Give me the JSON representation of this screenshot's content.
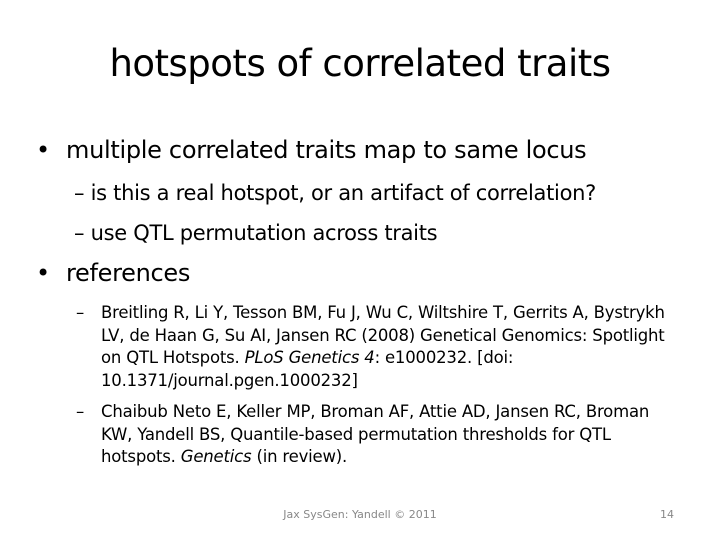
{
  "slide": {
    "title": "hotspots of correlated traits",
    "bullets": [
      {
        "marker": "•",
        "text": "multiple correlated traits map to same locus",
        "subs": [
          {
            "marker": "–",
            "text": "is this a real hotspot, or an artifact of correlation?"
          },
          {
            "marker": "–",
            "text": "use QTL permutation across traits"
          }
        ]
      },
      {
        "marker": "•",
        "text": "references"
      }
    ],
    "references": [
      {
        "marker": "–",
        "authors": "Breitling R, Li Y, Tesson BM, Fu J, Wu C, Wiltshire T, Gerrits A, Bystrykh LV, de Haan G, Su AI, Jansen RC (2008) Genetical Genomics: Spotlight on QTL Hotspots.",
        "journal": "PLoS Genetics 4",
        "rest": ": e1000232. [doi: 10.1371/journal.pgen.1000232]"
      },
      {
        "marker": "–",
        "authors": "Chaibub Neto E, Keller MP, Broman AF, Attie AD, Jansen RC, Broman KW, Yandell BS, Quantile-based permutation thresholds for QTL hotspots.",
        "journal": "Genetics",
        "rest": " (in review)."
      }
    ]
  },
  "footer": {
    "center": "Jax SysGen: Yandell © 2011",
    "page": "14"
  }
}
